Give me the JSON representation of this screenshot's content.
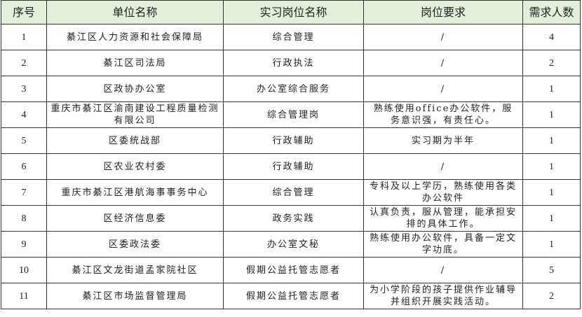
{
  "table": {
    "headers": [
      "序号",
      "单位名称",
      "实习岗位名称",
      "岗位要求",
      "需求人数"
    ],
    "header_bg": "#e2efda",
    "rows": [
      [
        "1",
        "綦江区人力资源和社会保障局",
        "综合管理",
        "/",
        "4"
      ],
      [
        "2",
        "綦江区司法局",
        "行政执法",
        "/",
        "2"
      ],
      [
        "3",
        "区政协办公室",
        "办公室综合服务",
        "/",
        "1"
      ],
      [
        "4",
        "重庆市綦江区渝南建设工程质量检测有限公司",
        "综合管理岗",
        "熟练使用office办公软件，服务意识强，有责任心。",
        "1"
      ],
      [
        "5",
        "区委统战部",
        "行政辅助",
        "实习期为半年",
        "1"
      ],
      [
        "6",
        "区农业农村委",
        "行政辅助",
        "/",
        "1"
      ],
      [
        "7",
        "重庆市綦江区港航海事事务中心",
        "综合管理",
        "专科及以上学历，熟练使用各类办公软件",
        "1"
      ],
      [
        "8",
        "区经济信息委",
        "政务实践",
        "认真负责，服从管理，能承担安排的具体工作。",
        "1"
      ],
      [
        "9",
        "区委政法委",
        "办公室文秘",
        "熟练使用办公软件，具备一定文字功底。",
        "1"
      ],
      [
        "10",
        "綦江区文龙街道孟家院社区",
        "假期公益托管志愿者",
        "/",
        "5"
      ],
      [
        "11",
        "綦江区市场监督管理局",
        "假期公益托管志愿者",
        "为小学阶段的孩子提供作业辅导并组织开展实践活动。",
        "2"
      ]
    ]
  }
}
